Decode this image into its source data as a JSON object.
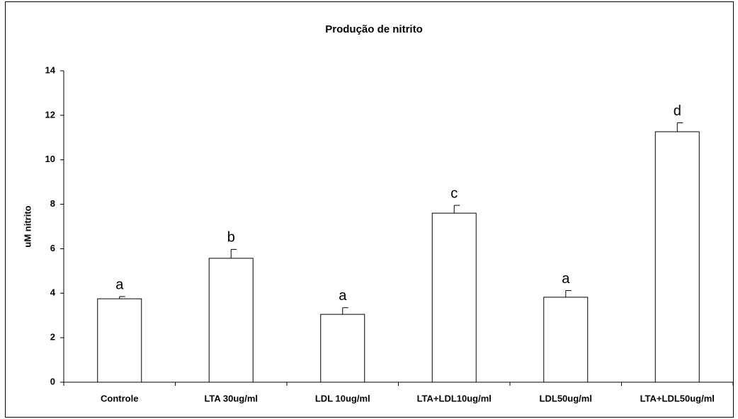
{
  "chart_data": {
    "type": "bar",
    "title": "Produção de nitrito",
    "ylabel": "uM nitrito",
    "categories": [
      "Controle",
      "LTA 30ug/ml",
      "LDL 10ug/ml",
      "LTA+LDL10ug/ml",
      "LDL50ug/ml",
      "LTA+LDL50ug/ml"
    ],
    "values": [
      3.75,
      5.57,
      3.05,
      7.6,
      3.82,
      11.26
    ],
    "errors": [
      0.1,
      0.4,
      0.3,
      0.35,
      0.3,
      0.4
    ],
    "annotations": [
      "a",
      "b",
      "a",
      "c",
      "a",
      "d"
    ],
    "color": "#ffffff",
    "ylim": [
      0,
      14
    ],
    "yticks": [
      0,
      2,
      4,
      6,
      8,
      10,
      12,
      14
    ],
    "grid": false
  }
}
